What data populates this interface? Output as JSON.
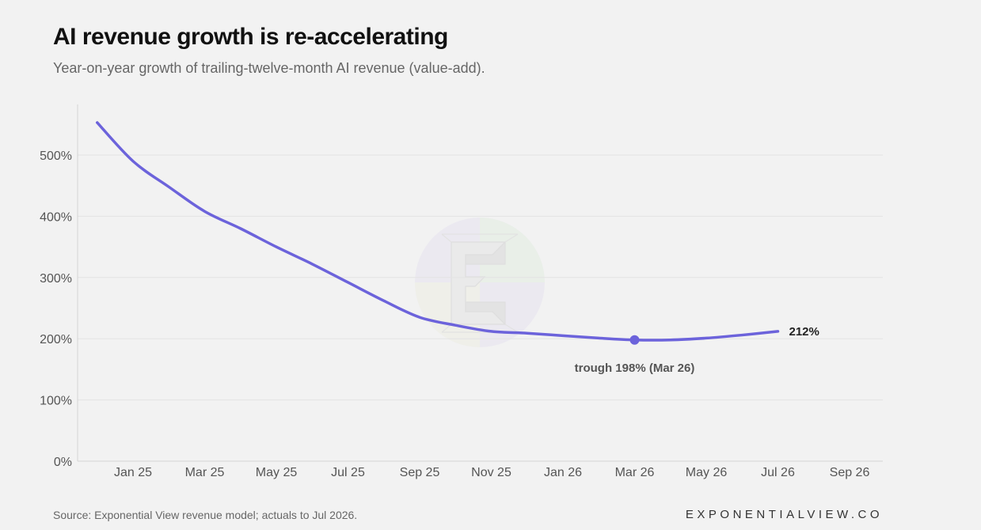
{
  "chart_data": {
    "type": "line",
    "title": "AI revenue growth is re-accelerating",
    "subtitle": "Year-on-year growth of trailing-twelve-month AI revenue (value-add).",
    "xlabel": "",
    "ylabel": "",
    "x_ticks": [
      "Jan 25",
      "Mar 25",
      "May 25",
      "Jul 25",
      "Sep 25",
      "Nov 25",
      "Jan 26",
      "Mar 26",
      "May 26",
      "Jul 26",
      "Sep 26"
    ],
    "y_ticks": [
      "0%",
      "100%",
      "200%",
      "300%",
      "400%",
      "500%"
    ],
    "ylim": [
      0,
      550
    ],
    "grid": true,
    "series": [
      {
        "name": "",
        "color": "#6c63db",
        "points": [
          {
            "x": "Dec 24",
            "y": 553
          },
          {
            "x": "Jan 25",
            "y": 490
          },
          {
            "x": "Feb 25",
            "y": 448
          },
          {
            "x": "Mar 25",
            "y": 408
          },
          {
            "x": "Apr 25",
            "y": 380
          },
          {
            "x": "May 25",
            "y": 350
          },
          {
            "x": "Jun 25",
            "y": 322
          },
          {
            "x": "Jul 25",
            "y": 292
          },
          {
            "x": "Aug 25",
            "y": 262
          },
          {
            "x": "Sep 25",
            "y": 235
          },
          {
            "x": "Oct 25",
            "y": 222
          },
          {
            "x": "Nov 25",
            "y": 212
          },
          {
            "x": "Dec 25",
            "y": 209
          },
          {
            "x": "Jan 26",
            "y": 205
          },
          {
            "x": "Feb 26",
            "y": 201
          },
          {
            "x": "Mar 26",
            "y": 198
          },
          {
            "x": "Apr 26",
            "y": 198
          },
          {
            "x": "May 26",
            "y": 201
          },
          {
            "x": "Jun 26",
            "y": 206
          },
          {
            "x": "Jul 26",
            "y": 212
          }
        ]
      }
    ],
    "annotations": {
      "trough": {
        "x": "Mar 26",
        "y": 198,
        "label": "trough 198% (Mar 26)"
      },
      "end": {
        "x": "Jul 26",
        "y": 212,
        "label": "212%"
      }
    }
  },
  "footer": {
    "source": "Source: Exponential View revenue model; actuals to Jul 2026.",
    "brand": "EXPONENTIALVIEW.CO"
  }
}
